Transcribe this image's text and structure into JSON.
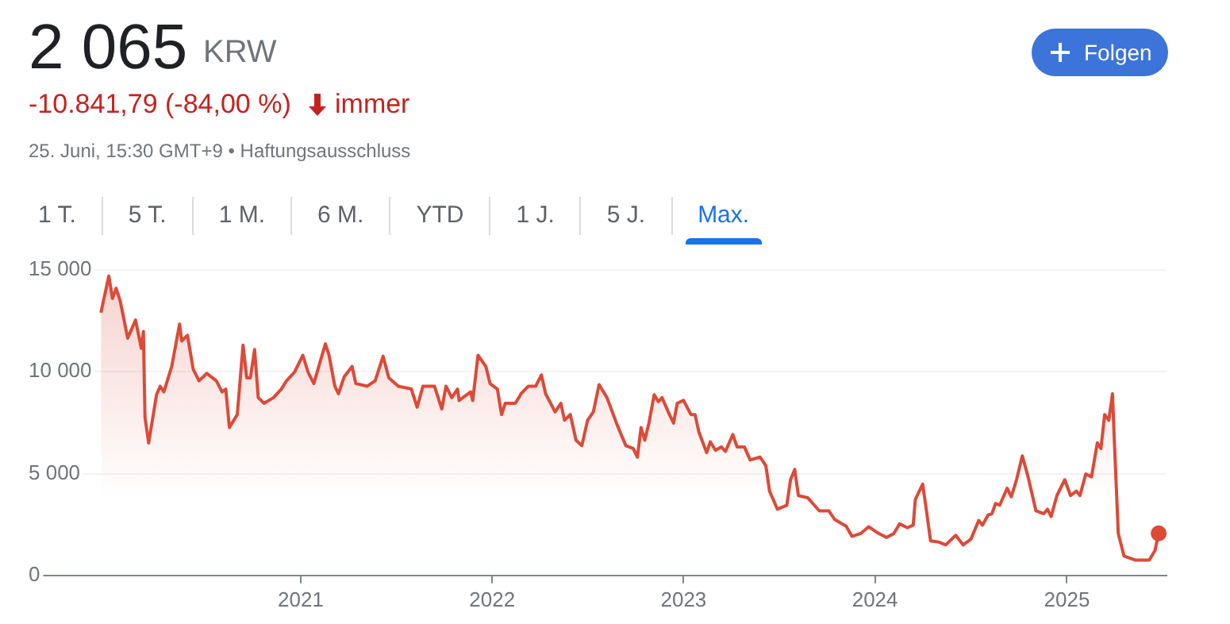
{
  "chart_data": {
    "type": "area",
    "title": "2 065",
    "annotations": [
      "KRW",
      "-10.841,79 (-84,00 %)",
      "immer",
      "25. Juni, 15:30 GMT+9 • Haftungsausschluss",
      "Folgen",
      "1 T.",
      "5 T.",
      "1 M.",
      "6 M.",
      "YTD",
      "1 J.",
      "5 J.",
      "Max."
    ],
    "xlim": [
      "2019-08-01",
      "2025-07-10"
    ],
    "xticks": [
      {
        "value": "2021-01-01",
        "label": "2021"
      },
      {
        "value": "2022-01-01",
        "label": "2022"
      },
      {
        "value": "2023-01-01",
        "label": "2023"
      },
      {
        "value": "2024-01-01",
        "label": "2024"
      },
      {
        "value": "2025-01-01",
        "label": "2025"
      }
    ],
    "ylim": [
      0,
      15000
    ],
    "yticks": [
      {
        "value": 0,
        "label": "0"
      },
      {
        "value": 5000,
        "label": "5 000"
      },
      {
        "value": 10000,
        "label": "10 000"
      },
      {
        "value": 15000,
        "label": "15 000"
      }
    ],
    "grid": "y",
    "legend": false,
    "marker": "none",
    "series": [
      {
        "color": "#dc4a38",
        "x": [
          "2019-12-17",
          "2020-01-01",
          "2020-01-08",
          "2020-01-15",
          "2020-01-23",
          "2020-02-06",
          "2020-02-21",
          "2020-03-03",
          "2020-03-07",
          "2020-03-10",
          "2020-03-17",
          "2020-04-01",
          "2020-04-08",
          "2020-04-15",
          "2020-04-30",
          "2020-05-15",
          "2020-05-19",
          "2020-05-30",
          "2020-06-10",
          "2020-06-21",
          "2020-07-06",
          "2020-07-24",
          "2020-08-04",
          "2020-08-11",
          "2020-08-18",
          "2020-09-02",
          "2020-09-13",
          "2020-09-20",
          "2020-09-27",
          "2020-10-05",
          "2020-10-12",
          "2020-10-23",
          "2020-11-10",
          "2020-11-25",
          "2020-12-05",
          "2020-12-20",
          "2021-01-05",
          "2021-01-15",
          "2021-01-26",
          "2021-02-06",
          "2021-02-17",
          "2021-02-24",
          "2021-03-07",
          "2021-03-14",
          "2021-03-25",
          "2021-04-09",
          "2021-04-16",
          "2021-05-08",
          "2021-05-23",
          "2021-06-07",
          "2021-06-18",
          "2021-07-06",
          "2021-07-31",
          "2021-08-11",
          "2021-08-22",
          "2021-09-13",
          "2021-09-27",
          "2021-10-05",
          "2021-10-16",
          "2021-10-27",
          "2021-10-30",
          "2021-11-21",
          "2021-11-25",
          "2021-12-05",
          "2021-12-20",
          "2021-12-28",
          "2022-01-11",
          "2022-01-19",
          "2022-01-26",
          "2022-02-14",
          "2022-02-21",
          "2022-02-25",
          "2022-03-11",
          "2022-03-25",
          "2022-04-05",
          "2022-04-13",
          "2022-05-01",
          "2022-05-12",
          "2022-05-19",
          "2022-05-30",
          "2022-06-10",
          "2022-06-21",
          "2022-07-02",
          "2022-07-13",
          "2022-07-24",
          "2022-08-08",
          "2022-08-26",
          "2022-09-13",
          "2022-09-27",
          "2022-10-05",
          "2022-10-12",
          "2022-10-19",
          "2022-10-27",
          "2022-11-06",
          "2022-11-14",
          "2022-11-21",
          "2022-12-05",
          "2022-12-13",
          "2022-12-20",
          "2023-01-01",
          "2023-01-15",
          "2023-01-23",
          "2023-01-30",
          "2023-02-14",
          "2023-02-21",
          "2023-03-03",
          "2023-03-14",
          "2023-03-22",
          "2023-04-05",
          "2023-04-13",
          "2023-04-27",
          "2023-05-08",
          "2023-05-27",
          "2023-06-07",
          "2023-06-14",
          "2023-06-29",
          "2023-07-17",
          "2023-07-24",
          "2023-08-01",
          "2023-08-08",
          "2023-08-26",
          "2023-09-17",
          "2023-10-05",
          "2023-10-16",
          "2023-11-07",
          "2023-11-18",
          "2023-12-05",
          "2023-12-20",
          "2024-01-05",
          "2024-01-23",
          "2024-02-06",
          "2024-02-17",
          "2024-03-03",
          "2024-03-14",
          "2024-03-18",
          "2024-04-01",
          "2024-04-09",
          "2024-04-16",
          "2024-05-01",
          "2024-05-15",
          "2024-06-03",
          "2024-06-17",
          "2024-07-02",
          "2024-07-17",
          "2024-07-24",
          "2024-08-04",
          "2024-08-11",
          "2024-08-18",
          "2024-08-26",
          "2024-09-09",
          "2024-09-17",
          "2024-09-27",
          "2024-10-08",
          "2024-10-19",
          "2024-11-03",
          "2024-11-18",
          "2024-11-25",
          "2024-12-02",
          "2024-12-13",
          "2024-12-28",
          "2025-01-08",
          "2025-01-19",
          "2025-01-26",
          "2025-02-06",
          "2025-02-17",
          "2025-02-28",
          "2025-03-07",
          "2025-03-14",
          "2025-03-22",
          "2025-03-29",
          "2025-04-01",
          "2025-04-09",
          "2025-04-20",
          "2025-05-12",
          "2025-06-07",
          "2025-06-18",
          "2025-06-25"
        ],
        "values": [
          12900,
          14700,
          13600,
          14100,
          13450,
          11650,
          12540,
          11150,
          11980,
          7760,
          6500,
          8870,
          9290,
          9010,
          10260,
          12340,
          11510,
          11790,
          10120,
          9560,
          9920,
          9560,
          9010,
          9150,
          7260,
          7900,
          11310,
          9700,
          9700,
          11090,
          8730,
          8450,
          8730,
          9150,
          9560,
          9980,
          10810,
          9980,
          9420,
          10400,
          11370,
          10810,
          9290,
          8920,
          9760,
          10260,
          9420,
          9290,
          9560,
          10760,
          9700,
          9290,
          9150,
          8260,
          9290,
          9290,
          8170,
          9290,
          8730,
          9150,
          8590,
          9010,
          8590,
          10810,
          10260,
          9420,
          9150,
          7900,
          8450,
          8450,
          8730,
          8920,
          9290,
          9290,
          9840,
          8920,
          8030,
          8450,
          7620,
          7900,
          6640,
          6370,
          7620,
          8030,
          9370,
          8730,
          7480,
          6370,
          6230,
          5810,
          7260,
          6640,
          7480,
          8870,
          8530,
          8730,
          7900,
          7480,
          8450,
          8590,
          7900,
          7900,
          7060,
          6030,
          6560,
          6140,
          6310,
          6090,
          6920,
          6310,
          6310,
          5670,
          5810,
          5390,
          4140,
          3250,
          3450,
          4700,
          5200,
          3920,
          3810,
          3170,
          3170,
          2750,
          2420,
          1920,
          2060,
          2390,
          2110,
          1860,
          2060,
          2530,
          2340,
          2470,
          3730,
          4480,
          3030,
          1700,
          1640,
          1500,
          1970,
          1500,
          1780,
          2700,
          2470,
          2970,
          3030,
          3530,
          3450,
          4280,
          3860,
          4700,
          5870,
          4840,
          3170,
          3030,
          3250,
          2890,
          3920,
          4700,
          3920,
          4140,
          3920,
          4980,
          4840,
          6510,
          6230,
          7900,
          7620,
          8920,
          6920,
          2060,
          950,
          750,
          750,
          1220,
          2065
        ]
      }
    ]
  }
}
